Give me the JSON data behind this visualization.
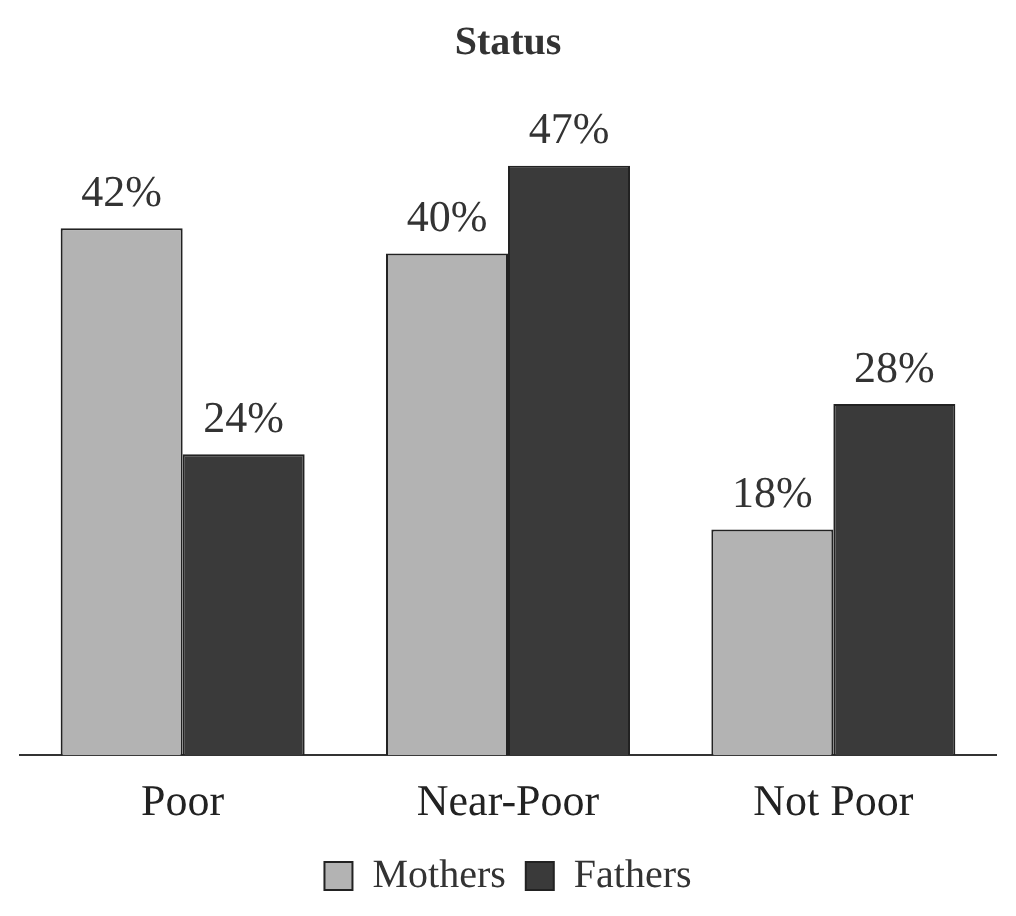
{
  "chart_data": {
    "type": "bar",
    "title": "Status",
    "categories": [
      "Poor",
      "Near-Poor",
      "Not Poor"
    ],
    "series": [
      {
        "name": "Mothers",
        "color": "#b3b3b3",
        "values": [
          42,
          40,
          18
        ],
        "value_labels": [
          "42%",
          "40%",
          "18%"
        ]
      },
      {
        "name": "Fathers",
        "color": "#3a3a3a",
        "values": [
          24,
          47,
          28
        ],
        "value_labels": [
          "24%",
          "47%",
          "28%"
        ]
      }
    ],
    "legend": "bottom",
    "grid": false
  }
}
